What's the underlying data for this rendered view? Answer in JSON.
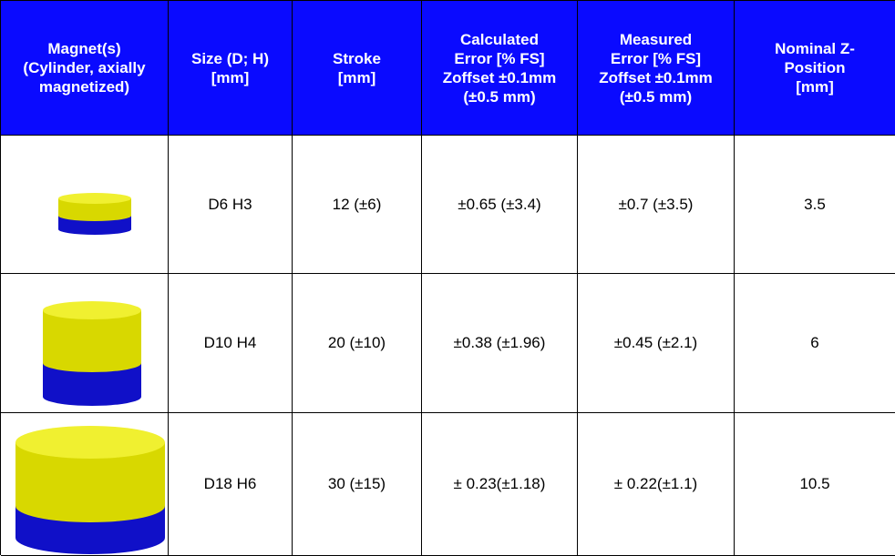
{
  "header": [
    [
      "Magnet(s)",
      "(Cylinder, axially",
      "magnetized)"
    ],
    [
      "Size (D; H)",
      "[mm]"
    ],
    [
      "Stroke",
      "[mm]"
    ],
    [
      "Calculated",
      "Error [% FS]",
      "Zoffset ±0.1mm",
      "(±0.5 mm)"
    ],
    [
      "Measured",
      "Error [% FS]",
      "Zoffset ±0.1mm",
      "(±0.5 mm)"
    ],
    [
      "Nominal Z-",
      "Position",
      "[mm]"
    ]
  ],
  "rows": [
    [
      "D6 H3",
      "12 (±6)",
      "±0.65 (±3.4)",
      "±0.7 (±3.5)",
      "3.5"
    ],
    [
      "D10 H4",
      "20 (±10)",
      "±0.38 (±1.96)",
      "±0.45 (±2.1)",
      "6"
    ],
    [
      "D18 H6",
      "30 (±15)",
      "± 0.23(±1.18)",
      "± 0.22(±1.1)",
      "10.5"
    ]
  ]
}
